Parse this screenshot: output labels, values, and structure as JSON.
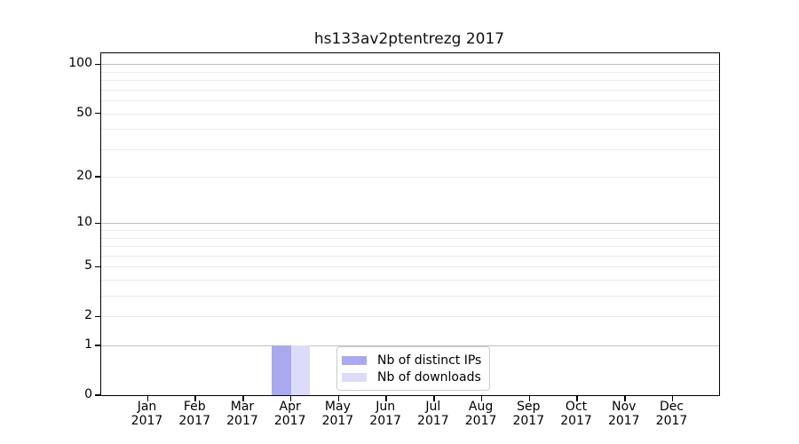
{
  "chart_data": {
    "type": "bar",
    "title": "hs133av2ptentrezg 2017",
    "xlabel": "",
    "ylabel": "",
    "x_months": [
      "Jan",
      "Feb",
      "Mar",
      "Apr",
      "May",
      "Jun",
      "Jul",
      "Aug",
      "Sep",
      "Oct",
      "Nov",
      "Dec"
    ],
    "x_year": "2017",
    "series": [
      {
        "name": "Nb of distinct IPs",
        "color": "#a9a9f0",
        "values": [
          0,
          0,
          0,
          1,
          0,
          0,
          0,
          0,
          0,
          0,
          0,
          0
        ]
      },
      {
        "name": "Nb of downloads",
        "color": "#dcdcf9",
        "values": [
          0,
          0,
          0,
          1,
          0,
          0,
          0,
          0,
          0,
          0,
          0,
          0
        ]
      }
    ],
    "y_scale": "log1p",
    "ylim": [
      0,
      116.8
    ],
    "y_ticks": [
      0,
      1,
      2,
      5,
      10,
      20,
      50,
      100
    ],
    "gridlines": {
      "light": [
        2,
        3,
        4,
        5,
        6,
        7,
        8,
        9,
        20,
        30,
        40,
        50,
        60,
        70,
        80,
        90
      ],
      "dark": [
        1,
        10,
        100
      ]
    },
    "grid_colors": {
      "light": "#ebebeb",
      "dark": "#bfbfbf"
    },
    "legend_position": "inside-bottom-center",
    "background": "#ffffff"
  }
}
